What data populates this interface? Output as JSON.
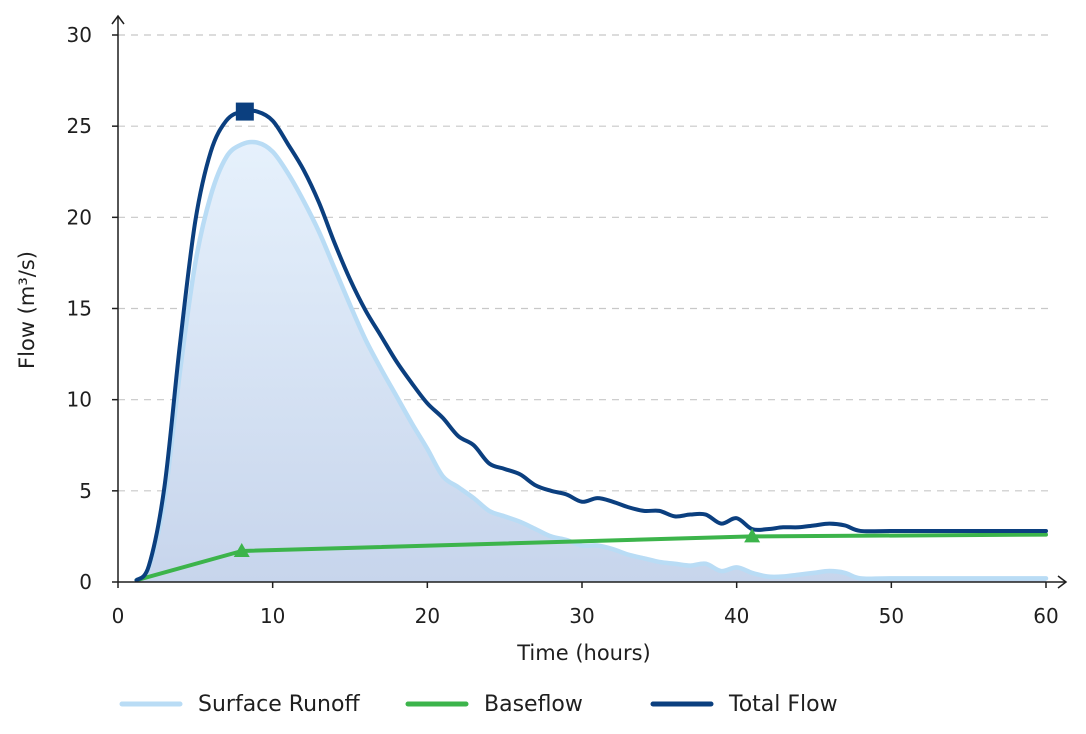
{
  "chart_data": {
    "type": "line",
    "xlabel": "Time (hours)",
    "ylabel": "Flow (m³/s)",
    "xlim": [
      0,
      60
    ],
    "ylim": [
      0,
      30
    ],
    "xticks": [
      "0",
      "10",
      "20",
      "30",
      "40",
      "50",
      "60"
    ],
    "yticks": [
      "0",
      "5",
      "10",
      "15",
      "20",
      "25",
      "30"
    ],
    "grid": "horizontal dashed",
    "legend_position": "bottom",
    "series": [
      {
        "name": "Surface Runoff",
        "color": "#b9dcf5",
        "style": "line with filled area",
        "x": [
          1.2,
          2,
          3,
          4,
          5,
          6,
          7,
          8,
          9,
          10,
          11,
          12,
          13,
          14,
          15,
          16,
          17,
          18,
          19,
          20,
          21,
          22,
          23,
          24,
          25,
          26,
          27,
          28,
          29,
          30,
          31,
          32,
          33,
          34,
          35,
          36,
          37,
          38,
          39,
          40,
          41,
          42,
          43,
          44,
          45,
          46,
          47,
          48,
          50,
          55,
          60
        ],
        "y": [
          0.1,
          0.8,
          4.5,
          11.5,
          17.5,
          21.2,
          23.3,
          24.0,
          24.1,
          23.6,
          22.4,
          20.9,
          19.2,
          17.2,
          15.2,
          13.3,
          11.7,
          10.2,
          8.7,
          7.3,
          5.8,
          5.2,
          4.6,
          3.9,
          3.6,
          3.3,
          2.9,
          2.5,
          2.3,
          2.0,
          2.0,
          1.8,
          1.5,
          1.3,
          1.1,
          1.0,
          0.9,
          1.0,
          0.6,
          0.8,
          0.5,
          0.3,
          0.3,
          0.4,
          0.5,
          0.6,
          0.5,
          0.2,
          0.2,
          0.2,
          0.2
        ]
      },
      {
        "name": "Baseflow",
        "color": "#3cb44b",
        "style": "line",
        "x": [
          1.2,
          8,
          41,
          60
        ],
        "y": [
          0.1,
          1.7,
          2.5,
          2.6
        ],
        "markers": [
          {
            "x": 8,
            "y": 1.7
          },
          {
            "x": 41,
            "y": 2.5
          }
        ]
      },
      {
        "name": "Total Flow",
        "color": "#0b3f7f",
        "style": "line",
        "x": [
          1.2,
          2,
          3,
          4,
          5,
          6,
          7,
          8,
          9,
          10,
          11,
          12,
          13,
          14,
          15,
          16,
          17,
          18,
          19,
          20,
          21,
          22,
          23,
          24,
          25,
          26,
          27,
          28,
          29,
          30,
          31,
          32,
          33,
          34,
          35,
          36,
          37,
          38,
          39,
          40,
          41,
          42,
          43,
          44,
          45,
          46,
          47,
          48,
          50,
          55,
          60
        ],
        "y": [
          0.1,
          0.9,
          5.2,
          13.0,
          19.8,
          23.6,
          25.3,
          25.8,
          25.8,
          25.3,
          24.0,
          22.6,
          20.8,
          18.6,
          16.6,
          14.9,
          13.5,
          12.1,
          10.9,
          9.8,
          9.0,
          8.0,
          7.5,
          6.5,
          6.2,
          5.9,
          5.3,
          5.0,
          4.8,
          4.4,
          4.6,
          4.4,
          4.1,
          3.9,
          3.9,
          3.6,
          3.7,
          3.7,
          3.2,
          3.5,
          2.9,
          2.9,
          3.0,
          3.0,
          3.1,
          3.2,
          3.1,
          2.8,
          2.8,
          2.8,
          2.8
        ],
        "peak_marker": {
          "x": 8.2,
          "y": 25.8
        }
      }
    ]
  }
}
